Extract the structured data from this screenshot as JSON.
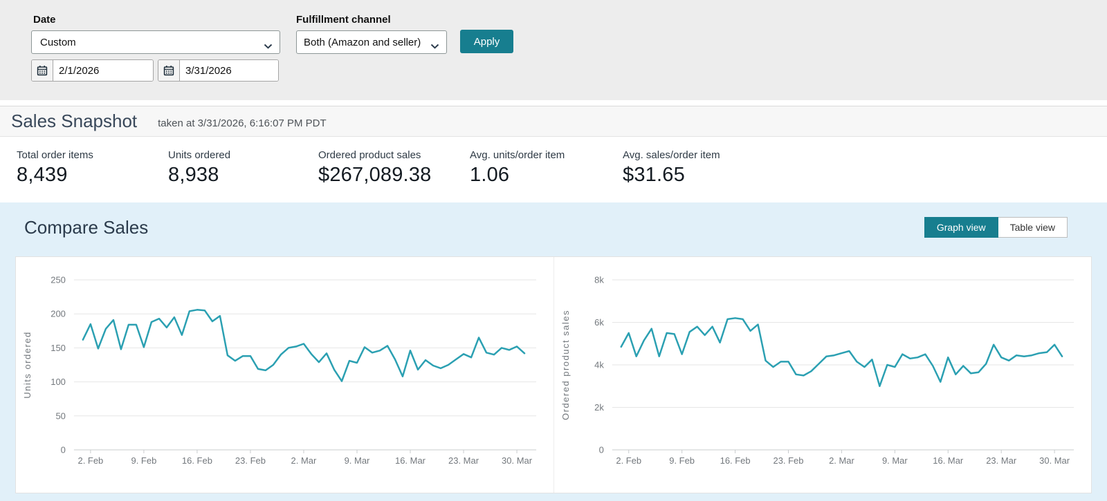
{
  "filters": {
    "date_label": "Date",
    "date_preset": "Custom",
    "from_date": "2/1/2026",
    "to_date": "3/31/2026",
    "channel_label": "Fulfillment channel",
    "channel_value": "Both (Amazon and seller)",
    "apply_label": "Apply"
  },
  "snapshot": {
    "title": "Sales Snapshot",
    "taken_at": "taken at 3/31/2026, 6:16:07 PM PDT",
    "metrics": [
      {
        "label": "Total order items",
        "value": "8,439"
      },
      {
        "label": "Units ordered",
        "value": "8,938"
      },
      {
        "label": "Ordered product sales",
        "value": "$267,089.38"
      },
      {
        "label": "Avg. units/order item",
        "value": "1.06"
      },
      {
        "label": "Avg. sales/order item",
        "value": "$31.65"
      }
    ]
  },
  "compare": {
    "title": "Compare Sales",
    "graph_view_label": "Graph view",
    "table_view_label": "Table view"
  },
  "colors": {
    "accent_teal": "#177e8f",
    "line_teal": "#2ba0b2",
    "compare_bg": "#e1f0f9",
    "grid": "#e6e6e6",
    "axis": "#c9ccce",
    "tick_text": "#73787d"
  },
  "chart_data": [
    {
      "type": "line",
      "title": "",
      "ylabel": "Units ordered",
      "xlabel": "",
      "ylim": [
        0,
        250
      ],
      "y_ticks": [
        0,
        50,
        100,
        150,
        200,
        250
      ],
      "y_tick_labels": [
        "0",
        "50",
        "100",
        "150",
        "200",
        "250"
      ],
      "x_tick_labels": [
        "2. Feb",
        "9. Feb",
        "16. Feb",
        "23. Feb",
        "2. Mar",
        "9. Mar",
        "16. Mar",
        "23. Mar",
        "30. Mar"
      ],
      "x_tick_indices": [
        1,
        8,
        15,
        22,
        29,
        36,
        43,
        50,
        57
      ],
      "grid": true,
      "legend": false,
      "values": [
        162,
        185,
        149,
        178,
        191,
        148,
        184,
        184,
        151,
        188,
        193,
        180,
        195,
        169,
        204,
        206,
        205,
        189,
        197,
        139,
        131,
        138,
        138,
        119,
        117,
        125,
        140,
        150,
        152,
        156,
        141,
        129,
        142,
        118,
        101,
        131,
        128,
        151,
        143,
        146,
        153,
        133,
        108,
        146,
        118,
        132,
        124,
        120,
        125,
        133,
        141,
        136,
        165,
        143,
        140,
        150,
        147,
        152,
        142
      ]
    },
    {
      "type": "line",
      "title": "",
      "ylabel": "Ordered product sales",
      "xlabel": "",
      "ylim": [
        0,
        8000
      ],
      "y_ticks": [
        0,
        2000,
        4000,
        6000,
        8000
      ],
      "y_tick_labels": [
        "0",
        "2k",
        "4k",
        "6k",
        "8k"
      ],
      "x_tick_labels": [
        "2. Feb",
        "9. Feb",
        "16. Feb",
        "23. Feb",
        "2. Mar",
        "9. Mar",
        "16. Mar",
        "23. Mar",
        "30. Mar"
      ],
      "x_tick_indices": [
        1,
        8,
        15,
        22,
        29,
        36,
        43,
        50,
        57
      ],
      "grid": true,
      "legend": false,
      "values": [
        4850,
        5500,
        4400,
        5150,
        5700,
        4400,
        5500,
        5450,
        4500,
        5550,
        5800,
        5400,
        5800,
        5050,
        6150,
        6200,
        6150,
        5600,
        5900,
        4200,
        3900,
        4150,
        4150,
        3550,
        3500,
        3700,
        4050,
        4400,
        4450,
        4550,
        4650,
        4150,
        3900,
        4250,
        3000,
        4000,
        3900,
        4500,
        4300,
        4350,
        4500,
        3950,
        3200,
        4350,
        3550,
        3950,
        3600,
        3650,
        4050,
        4950,
        4350,
        4200,
        4450,
        4400,
        4450,
        4550,
        4600,
        4950,
        4400
      ]
    }
  ]
}
